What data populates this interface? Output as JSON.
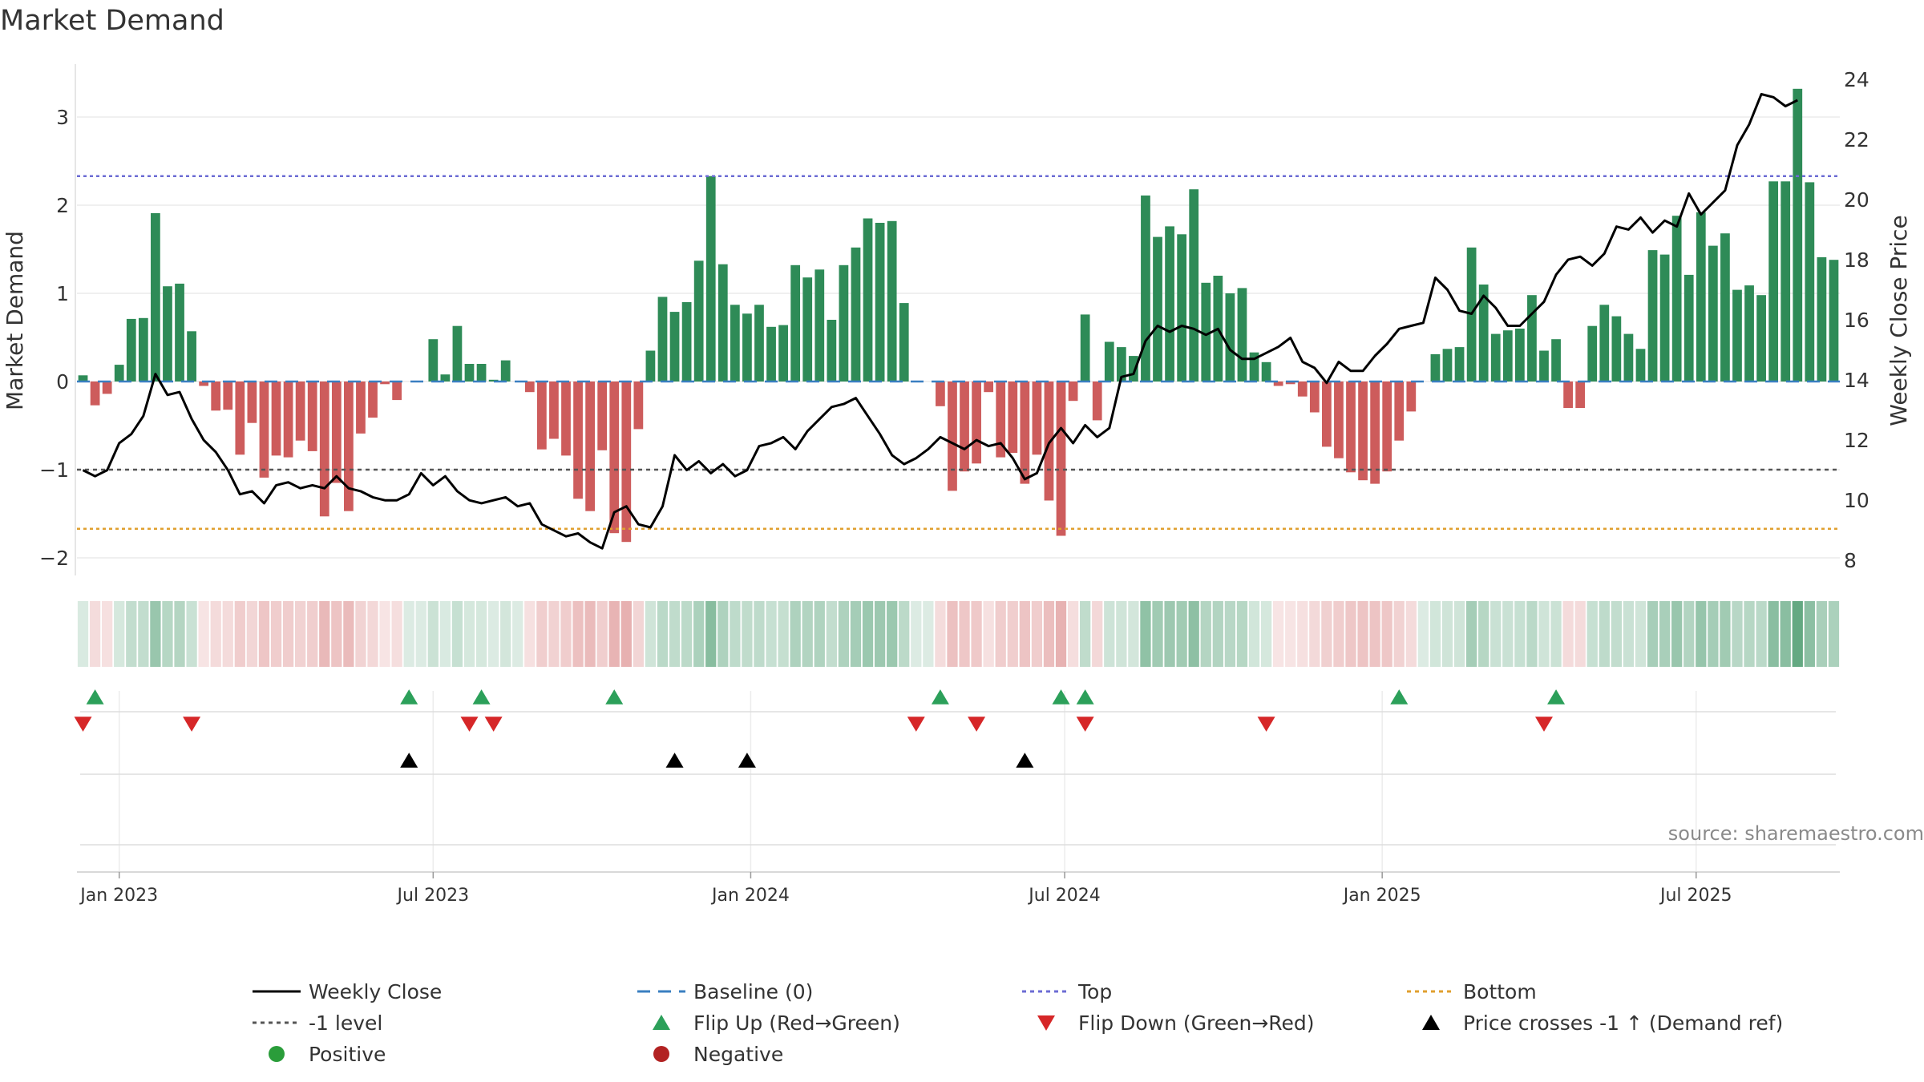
{
  "chart_data": {
    "type": "bar",
    "title": "Market Demand",
    "ylabel_left": "Market Demand",
    "ylabel_right": "Weekly Close Price",
    "ylim_left": [
      -2.2,
      3.6
    ],
    "ylim_right": [
      7.5,
      24.5
    ],
    "yticks_left": [
      -2,
      -1,
      0,
      1,
      2,
      3
    ],
    "yticks_left_labels": [
      "−2",
      "−1",
      "0",
      "1",
      "2",
      "3"
    ],
    "yticks_right": [
      8,
      10,
      12,
      14,
      16,
      18,
      20,
      22,
      24
    ],
    "x_start_week_offset": -3.5,
    "x_tick_labels": [
      "Jan 2023",
      "Jul 2023",
      "Jan 2024",
      "Jul 2024",
      "Jan 2025",
      "Jul 2025"
    ],
    "x_tick_weeks": [
      0,
      26,
      52.3,
      78.3,
      104.6,
      130.6
    ],
    "reference_lines": {
      "top": 2.33,
      "bottom": -1.67,
      "minus_one": -1,
      "baseline": 0
    },
    "demand": [
      0.07,
      -0.27,
      -0.14,
      0.19,
      0.71,
      0.72,
      1.91,
      1.08,
      1.11,
      0.57,
      -0.05,
      -0.33,
      -0.32,
      -0.83,
      -0.47,
      -1.09,
      -0.84,
      -0.86,
      -0.67,
      -0.79,
      -1.53,
      -1.15,
      -1.47,
      -0.59,
      -0.41,
      -0.03,
      -0.21,
      0.0,
      0.0,
      0.48,
      0.08,
      0.63,
      0.2,
      0.2,
      0.02,
      0.24,
      0.0,
      -0.12,
      -0.77,
      -0.65,
      -0.84,
      -1.33,
      -1.47,
      -0.78,
      -1.72,
      -1.82,
      -0.54,
      0.35,
      0.96,
      0.79,
      0.9,
      1.37,
      2.33,
      1.33,
      0.87,
      0.77,
      0.87,
      0.62,
      0.64,
      1.32,
      1.18,
      1.27,
      0.7,
      1.32,
      1.52,
      1.85,
      1.8,
      1.82,
      0.89,
      0.0,
      0.0,
      -0.28,
      -1.24,
      -1.02,
      -0.93,
      -0.12,
      -0.86,
      -0.81,
      -1.16,
      -0.83,
      -1.35,
      -1.75,
      -0.22,
      0.76,
      -0.44,
      0.45,
      0.39,
      0.29,
      2.11,
      1.64,
      1.76,
      1.67,
      2.18,
      1.12,
      1.2,
      1.0,
      1.06,
      0.33,
      0.22,
      -0.05,
      -0.03,
      -0.17,
      -0.35,
      -0.74,
      -0.87,
      -1.03,
      -1.12,
      -1.16,
      -1.02,
      -0.67,
      -0.34,
      0.0,
      0.31,
      0.37,
      0.39,
      1.52,
      1.1,
      0.54,
      0.58,
      0.6,
      0.98,
      0.35,
      0.48,
      -0.3,
      -0.3,
      0.63,
      0.87,
      0.74,
      0.54,
      0.37,
      1.49,
      1.44,
      1.88,
      1.21,
      1.92,
      1.54,
      1.68,
      1.04,
      1.09,
      0.98,
      2.27,
      2.27,
      3.32,
      2.26,
      1.41,
      1.38
    ],
    "weekly_close": [
      11.0,
      10.8,
      11.0,
      11.9,
      12.2,
      12.8,
      14.2,
      13.5,
      13.6,
      12.7,
      12.0,
      11.6,
      11.0,
      10.2,
      10.3,
      9.9,
      10.5,
      10.6,
      10.4,
      10.5,
      10.4,
      10.8,
      10.4,
      10.3,
      10.1,
      10.0,
      10.0,
      10.2,
      10.9,
      10.5,
      10.8,
      10.3,
      10.0,
      9.9,
      10.0,
      10.1,
      9.8,
      9.9,
      9.2,
      9.0,
      8.8,
      8.9,
      8.6,
      8.4,
      9.6,
      9.8,
      9.2,
      9.1,
      9.8,
      11.5,
      11.0,
      11.3,
      10.9,
      11.2,
      10.8,
      11.0,
      11.8,
      11.9,
      12.1,
      11.7,
      12.3,
      12.7,
      13.1,
      13.2,
      13.4,
      12.8,
      12.2,
      11.5,
      11.2,
      11.4,
      11.7,
      12.1,
      11.9,
      11.7,
      12.0,
      11.8,
      11.9,
      11.4,
      10.7,
      10.9,
      11.9,
      12.4,
      11.9,
      12.5,
      12.1,
      12.4,
      14.1,
      14.2,
      15.3,
      15.8,
      15.6,
      15.8,
      15.7,
      15.5,
      15.7,
      15.0,
      14.7,
      14.7,
      14.9,
      15.1,
      15.4,
      14.6,
      14.4,
      13.9,
      14.6,
      14.3,
      14.3,
      14.8,
      15.2,
      15.7,
      15.8,
      15.9,
      17.4,
      17.0,
      16.3,
      16.2,
      16.8,
      16.4,
      15.8,
      15.8,
      16.2,
      16.6,
      17.5,
      18.0,
      18.1,
      17.8,
      18.2,
      19.1,
      19.0,
      19.4,
      18.9,
      19.3,
      19.1,
      20.2,
      19.5,
      19.9,
      20.3,
      21.8,
      22.5,
      23.5,
      23.4,
      23.1,
      23.3
    ],
    "flip_up_weeks": [
      1,
      27,
      33,
      44,
      71,
      81,
      83,
      109,
      122
    ],
    "flip_down_weeks": [
      0,
      9,
      32,
      34,
      69,
      74,
      83,
      98,
      121
    ],
    "price_cross_weeks": [
      27,
      49,
      55,
      78
    ],
    "source_text": "source: sharemaestro.com",
    "legend": [
      {
        "label": "Weekly Close",
        "kind": "solid-line",
        "color": "#000000"
      },
      {
        "label": "Baseline (0)",
        "kind": "dash-line",
        "color": "#3a7fc1"
      },
      {
        "label": "Top",
        "kind": "dot-line",
        "color": "#6c6cd4"
      },
      {
        "label": "Bottom",
        "kind": "dot-line",
        "color": "#e0a030"
      },
      {
        "label": "-1 level",
        "kind": "dot-line",
        "color": "#555555"
      },
      {
        "label": "Flip Up (Red→Green)",
        "kind": "triangle-up",
        "color": "#2ca05a"
      },
      {
        "label": "Flip Down (Green→Red)",
        "kind": "triangle-down",
        "color": "#d62728"
      },
      {
        "label": "Price crosses -1 ↑ (Demand ref)",
        "kind": "triangle-up",
        "color": "#000000"
      },
      {
        "label": "Positive",
        "kind": "circle",
        "color": "#2a9d3a"
      },
      {
        "label": "Negative",
        "kind": "circle",
        "color": "#b22222"
      }
    ],
    "colors": {
      "positive": "#2e8b57",
      "negative": "#cd5c5c",
      "heat_pos": "#2e8b57",
      "heat_neg": "#cd5c5c"
    }
  }
}
